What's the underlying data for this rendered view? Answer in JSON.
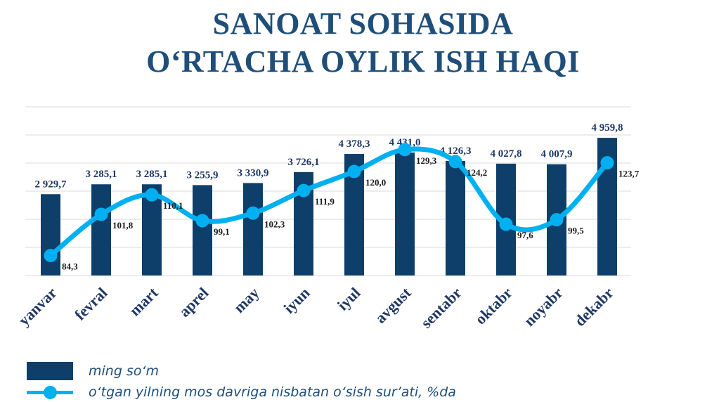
{
  "title": {
    "line1": "SANOAT SOHASIDA",
    "line2": "O‘RTACHA OYLIK ISH HAQI"
  },
  "colors": {
    "bar": "#0e3f6a",
    "line": "#00b0f0",
    "title": "#1f4e79",
    "grid": "#d9d9d9"
  },
  "legend": {
    "bar": "ming so‘m",
    "line": "o‘tgan yilning mos davriga nisbatan o‘sish sur’ati, %da"
  },
  "chart_data": {
    "type": "bar",
    "categories": [
      "yanvar",
      "fevral",
      "mart",
      "aprel",
      "may",
      "iyun",
      "iyul",
      "avgust",
      "sentabr",
      "oktabr",
      "noyabr",
      "dekabr"
    ],
    "series": [
      {
        "name": "ming so‘m",
        "type": "bar",
        "values": [
          2929.7,
          3285.1,
          3285.1,
          3255.9,
          3330.9,
          3726.1,
          4378.3,
          4431.0,
          4126.3,
          4027.8,
          4007.9,
          4959.8
        ],
        "labels": [
          "2 929,7",
          "3 285,1",
          "3 285,1",
          "3 255,9",
          "3 330,9",
          "3 726,1",
          "4 378,3",
          "4 431,0",
          "4 126,3",
          "4 027,8",
          "4 007,9",
          "4 959,8"
        ]
      },
      {
        "name": "o‘tgan yilning mos davriga nisbatan o‘sish sur’ati, %da",
        "type": "line",
        "values": [
          84.3,
          101.8,
          110.1,
          99.1,
          102.3,
          111.9,
          120.0,
          129.3,
          124.2,
          97.6,
          99.5,
          123.7
        ],
        "labels": [
          "84,3",
          "101,8",
          "110,1",
          "99,1",
          "102,3",
          "111,9",
          "120,0",
          "129,3",
          "124,2",
          "97,6",
          "99,5",
          "123,7"
        ]
      }
    ],
    "grid": true,
    "legend_position": "bottom-left"
  }
}
